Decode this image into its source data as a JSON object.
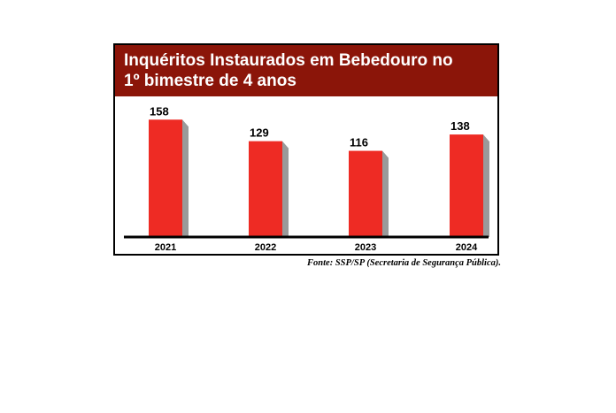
{
  "chart_data": {
    "type": "bar",
    "title_line1": "Inquéritos Instaurados em Bebedouro no",
    "title_line2": "1º bimestre de 4 anos",
    "categories": [
      "2021",
      "2022",
      "2023",
      "2024"
    ],
    "values": [
      158,
      129,
      116,
      138
    ],
    "value_labels": [
      "158",
      "129",
      "116",
      "138"
    ],
    "ylim": [
      0,
      175
    ],
    "grid": false,
    "legend": "none",
    "colors": {
      "bar": "#ee2b24",
      "bar_shadow": "#9a9a9a",
      "title_bg": "#8b1509",
      "axis": "#000000"
    }
  },
  "source": "Fonte: SSP/SP (Secretaria de Segurança Pública)."
}
